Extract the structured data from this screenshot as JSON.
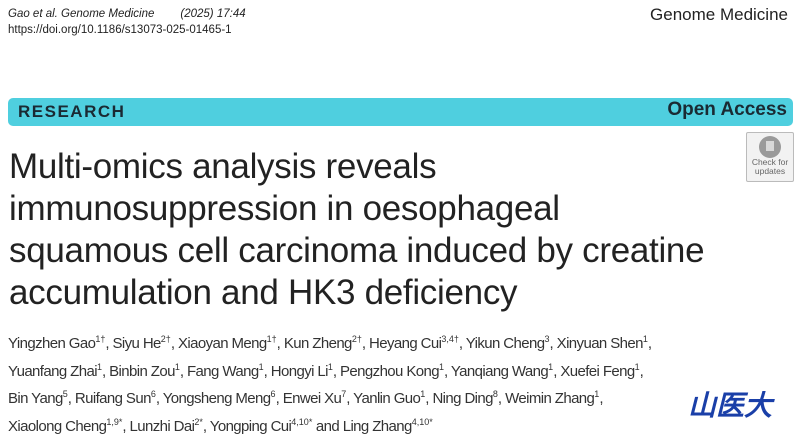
{
  "header": {
    "citation_journal": "Gao et al. Genome Medicine",
    "citation_year_vol": "(2025) 17:44",
    "doi": "https://doi.org/10.1186/s13073-025-01465-1",
    "journal_name": "Genome Medicine"
  },
  "banner": {
    "section": "RESEARCH",
    "access": "Open Access",
    "color": "#4fcfdf"
  },
  "check_updates": {
    "line1": "Check for",
    "line2": "updates"
  },
  "title": "Multi-omics analysis reveals immunosuppression in oesophageal squamous cell carcinoma induced by creatine accumulation and HK3 deficiency",
  "authors": [
    {
      "name": "Yingzhen Gao",
      "aff": "1†"
    },
    {
      "name": "Siyu He",
      "aff": "2†"
    },
    {
      "name": "Xiaoyan Meng",
      "aff": "1†"
    },
    {
      "name": "Kun Zheng",
      "aff": "2†"
    },
    {
      "name": "Heyang Cui",
      "aff": "3,4†"
    },
    {
      "name": "Yikun Cheng",
      "aff": "3"
    },
    {
      "name": "Xinyuan Shen",
      "aff": "1"
    },
    {
      "name": "Yuanfang Zhai",
      "aff": "1"
    },
    {
      "name": "Binbin Zou",
      "aff": "1"
    },
    {
      "name": "Fang Wang",
      "aff": "1"
    },
    {
      "name": "Hongyi Li",
      "aff": "1"
    },
    {
      "name": "Pengzhou Kong",
      "aff": "1"
    },
    {
      "name": "Yanqiang Wang",
      "aff": "1"
    },
    {
      "name": "Xuefei Feng",
      "aff": "1"
    },
    {
      "name": "Bin Yang",
      "aff": "5"
    },
    {
      "name": "Ruifang Sun",
      "aff": "6"
    },
    {
      "name": "Yongsheng Meng",
      "aff": "6"
    },
    {
      "name": "Enwei Xu",
      "aff": "7"
    },
    {
      "name": "Yanlin Guo",
      "aff": "1"
    },
    {
      "name": "Ning Ding",
      "aff": "8"
    },
    {
      "name": "Weimin Zhang",
      "aff": "1"
    },
    {
      "name": "Xiaolong Cheng",
      "aff": "1,9*"
    },
    {
      "name": "Lunzhi Dai",
      "aff": "2*"
    },
    {
      "name": "Yongping Cui",
      "aff": "4,10*"
    },
    {
      "name": "Ling Zhang",
      "aff": "4,10*"
    }
  ],
  "author_conjunction": "and",
  "watermark": "山医大"
}
